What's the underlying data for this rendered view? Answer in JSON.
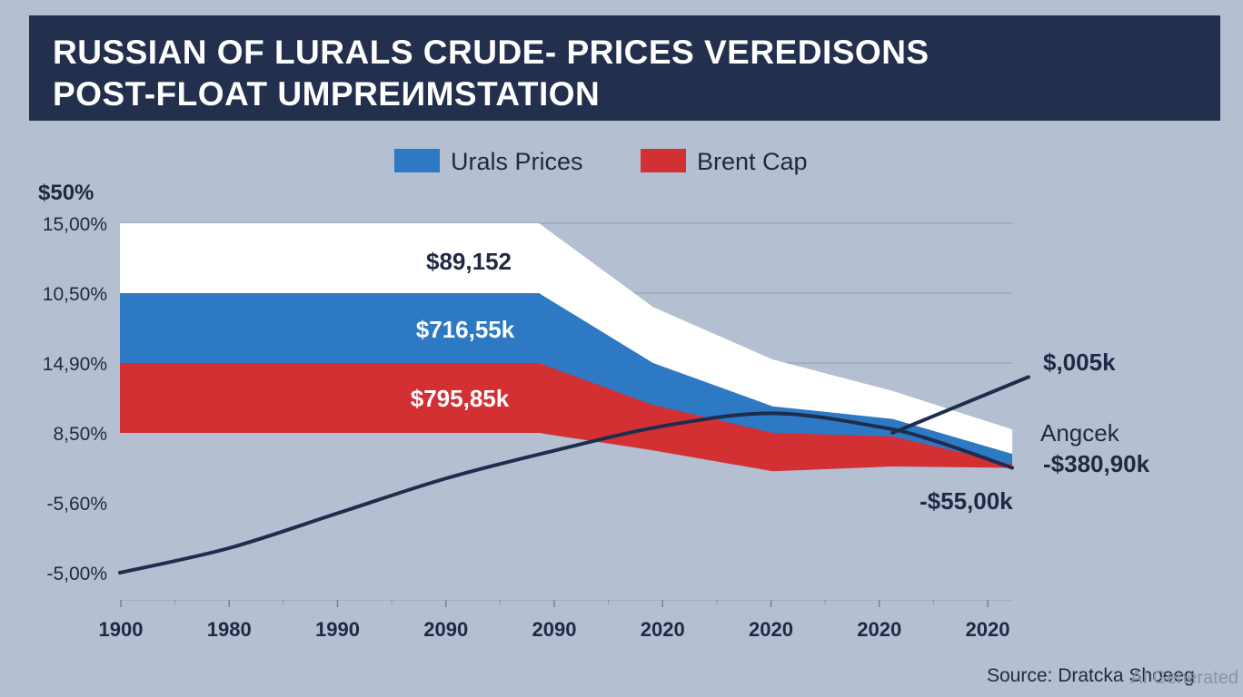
{
  "chart_data": {
    "type": "area",
    "title_lines": [
      "RUSSIAN OF LURALS CRUDE- PRICES VEREDISONS",
      "POST-FLOAT UMPREИMSTATION"
    ],
    "legend": [
      {
        "name": "Urals Prices",
        "color": "#2e79c4"
      },
      {
        "name": "Brent Cap",
        "color": "#d33034"
      }
    ],
    "y_unit_label": "$50%",
    "y_ticks": [
      {
        "label": "15,00%",
        "value": 5
      },
      {
        "label": "10,50%",
        "value": 4
      },
      {
        "label": "14,90%",
        "value": 3
      },
      {
        "label": "8,50%",
        "value": 2
      },
      {
        "label": "-5,60%",
        "value": 1
      },
      {
        "label": "-5,00%",
        "value": 0
      }
    ],
    "ylim": [
      -0.4,
      5.0
    ],
    "x_ticks": [
      "1900",
      "1980",
      "1990",
      "2090",
      "2090",
      "2020",
      "2020",
      "2020",
      "2020"
    ],
    "x_range": [
      0,
      8.2
    ],
    "series": [
      {
        "name": "upper band",
        "color": "#ffffff",
        "points": [
          [
            0,
            5.0
          ],
          [
            3.85,
            5.0
          ],
          [
            4.9,
            3.8
          ],
          [
            6.0,
            3.05
          ],
          [
            7.1,
            2.6
          ],
          [
            8.2,
            2.05
          ]
        ]
      },
      {
        "name": "Urals Prices",
        "color": "#2e79c4",
        "points": [
          [
            0,
            4.0
          ],
          [
            3.85,
            4.0
          ],
          [
            4.9,
            3.0
          ],
          [
            6.0,
            2.38
          ],
          [
            7.1,
            2.2
          ],
          [
            8.2,
            1.7
          ]
        ]
      },
      {
        "name": "Brent Cap",
        "color": "#d33034",
        "points": [
          [
            0,
            3.0
          ],
          [
            3.85,
            3.0
          ],
          [
            4.9,
            2.4
          ],
          [
            6.0,
            2.0
          ],
          [
            7.1,
            1.95
          ],
          [
            8.2,
            1.55
          ]
        ]
      },
      {
        "name": "base band",
        "color": "#b4bfd1",
        "points": [
          [
            0,
            2.0
          ],
          [
            3.85,
            2.0
          ],
          [
            4.9,
            1.75
          ],
          [
            6.0,
            1.45
          ],
          [
            7.1,
            1.52
          ],
          [
            8.2,
            1.5
          ]
        ]
      },
      {
        "name": "trend line",
        "color": "#1f2d4d",
        "points": [
          [
            0,
            0.0
          ],
          [
            1.0,
            0.35
          ],
          [
            2.0,
            0.85
          ],
          [
            3.0,
            1.35
          ],
          [
            4.0,
            1.75
          ],
          [
            5.0,
            2.1
          ],
          [
            6.0,
            2.28
          ],
          [
            7.0,
            2.08
          ],
          [
            7.5,
            1.88
          ],
          [
            8.2,
            1.5
          ]
        ]
      },
      {
        "name": "rising line",
        "color": "#1f2d4d",
        "points": [
          [
            7.1,
            2.0
          ],
          [
            8.35,
            2.8
          ]
        ]
      }
    ],
    "band_labels": [
      {
        "text": "$89,152",
        "series": "upper band"
      },
      {
        "text": "$716,55k",
        "series": "Urals Prices"
      },
      {
        "text": "$795,85k",
        "series": "Brent Cap"
      }
    ],
    "right_labels": [
      {
        "text": "$,005k"
      },
      {
        "text": "Angcek"
      },
      {
        "text": "-$380,90k"
      },
      {
        "text": "-$55,00k"
      }
    ]
  },
  "source": "Source: Dratcka Shoeeg",
  "watermark": "AI Generated"
}
